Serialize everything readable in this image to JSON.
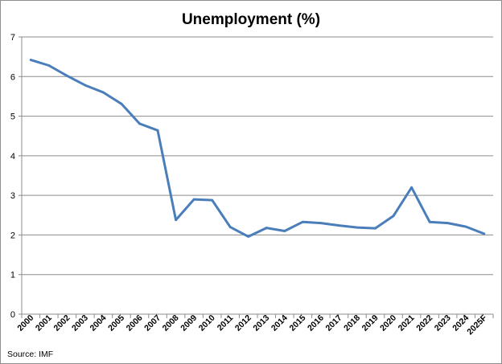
{
  "chart_data": {
    "type": "line",
    "title": "Unemployment (%)",
    "source": "Source: IMF",
    "xlabel": "",
    "ylabel": "",
    "ylim": [
      0,
      7
    ],
    "yticks": [
      "0",
      "1",
      "2",
      "3",
      "4",
      "5",
      "6",
      "7"
    ],
    "grid": true,
    "legend": "none",
    "categories": [
      "2000",
      "2001",
      "2002",
      "2003",
      "2004",
      "2005",
      "2006",
      "2007",
      "2008",
      "2009",
      "2010",
      "2011",
      "2012",
      "2013",
      "2014",
      "2015",
      "2016",
      "2017",
      "2018",
      "2019",
      "2020",
      "2021",
      "2022",
      "2023",
      "2024",
      "2025F"
    ],
    "series": [
      {
        "color": "#4a7ebb",
        "values": [
          6.42,
          6.28,
          6.02,
          5.78,
          5.6,
          5.31,
          4.81,
          4.64,
          2.38,
          2.9,
          2.88,
          2.2,
          1.96,
          2.18,
          2.1,
          2.33,
          2.3,
          2.24,
          2.19,
          2.17,
          2.48,
          3.2,
          2.33,
          2.3,
          2.21,
          2.03
        ]
      }
    ],
    "colors": {
      "line": "#4a7ebb",
      "grid": "#8c8c8c",
      "axis": "#8c8c8c"
    }
  }
}
